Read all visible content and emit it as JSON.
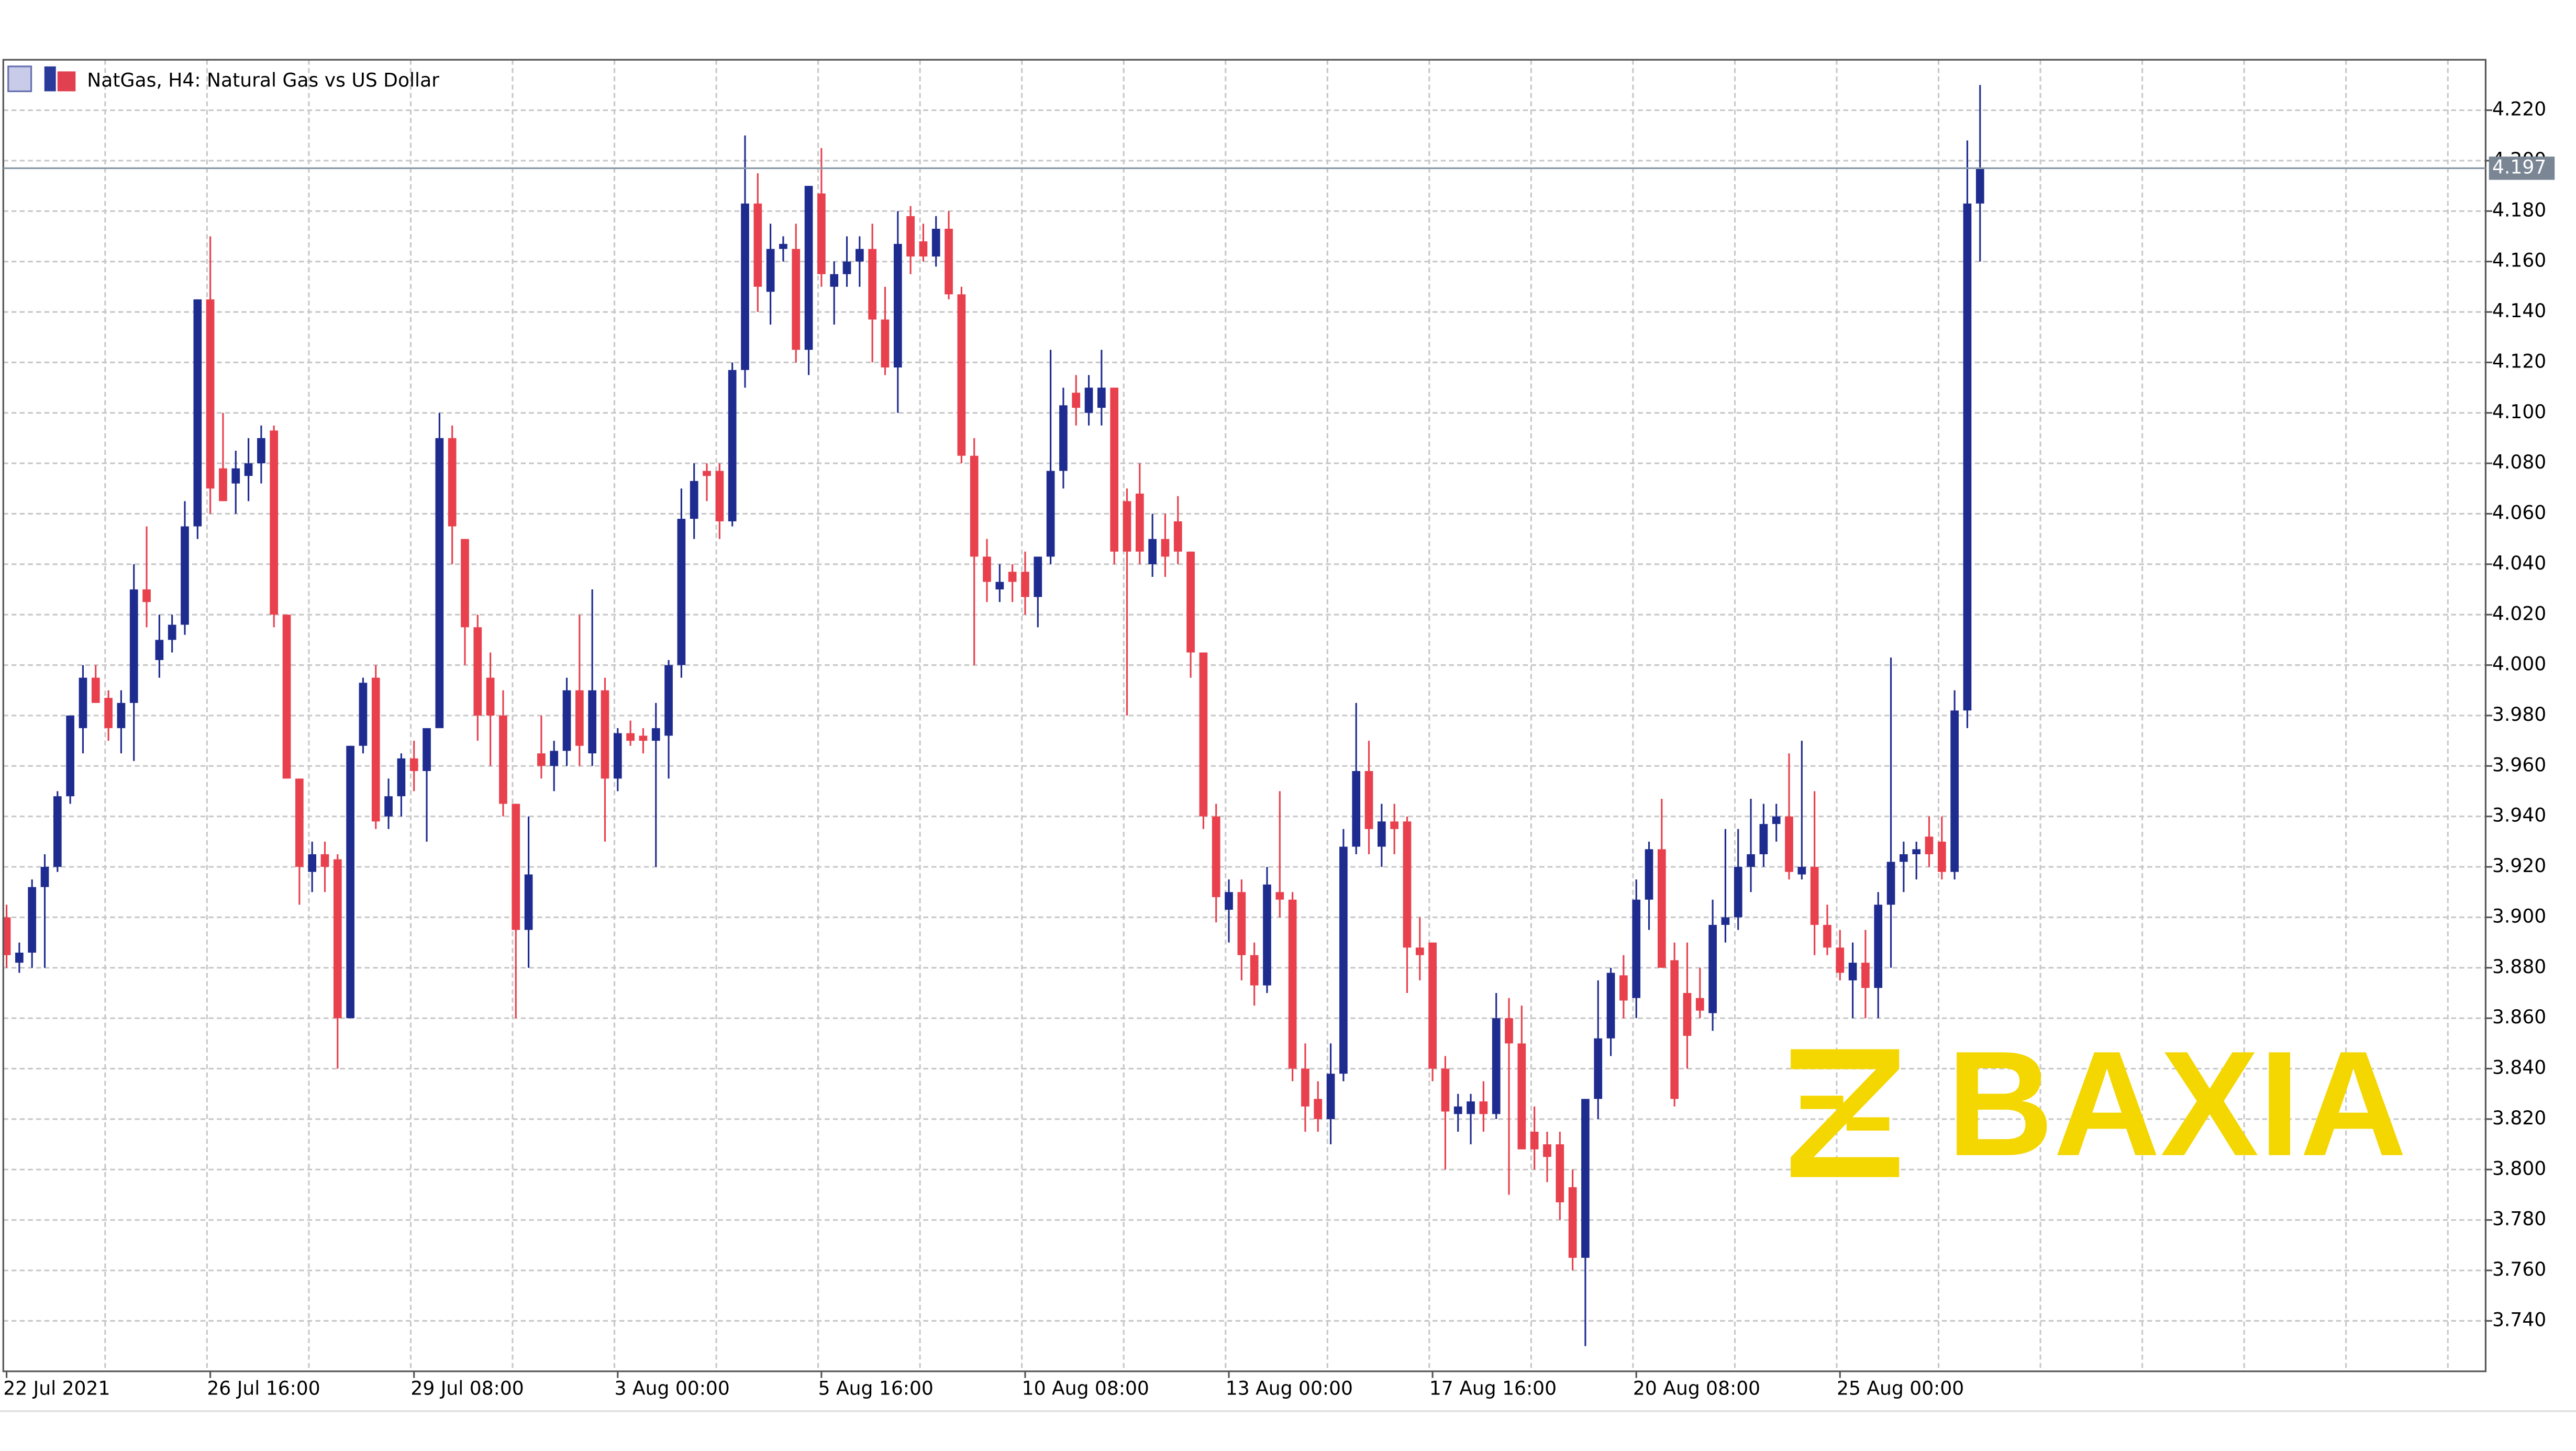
{
  "chart_data": {
    "type": "candlestick",
    "title": "NatGas, H4:  Natural Gas vs US Dollar",
    "watermark": "BAXIA",
    "bull_color": "#1f2c8f",
    "bear_color": "#e8404d",
    "grid": true,
    "ylim": [
      3.72,
      4.24
    ],
    "yticks": [
      {
        "value": 3.74,
        "label": "3.740"
      },
      {
        "value": 3.76,
        "label": "3.760"
      },
      {
        "value": 3.78,
        "label": "3.780"
      },
      {
        "value": 3.8,
        "label": "3.800"
      },
      {
        "value": 3.82,
        "label": "3.820"
      },
      {
        "value": 3.84,
        "label": "3.840"
      },
      {
        "value": 3.86,
        "label": "3.860"
      },
      {
        "value": 3.88,
        "label": "3.880"
      },
      {
        "value": 3.9,
        "label": "3.900"
      },
      {
        "value": 3.92,
        "label": "3.920"
      },
      {
        "value": 3.94,
        "label": "3.940"
      },
      {
        "value": 3.96,
        "label": "3.960"
      },
      {
        "value": 3.98,
        "label": "3.980"
      },
      {
        "value": 4.0,
        "label": "4.000"
      },
      {
        "value": 4.02,
        "label": "4.020"
      },
      {
        "value": 4.04,
        "label": "4.040"
      },
      {
        "value": 4.06,
        "label": "4.060"
      },
      {
        "value": 4.08,
        "label": "4.080"
      },
      {
        "value": 4.1,
        "label": "4.100"
      },
      {
        "value": 4.12,
        "label": "4.120"
      },
      {
        "value": 4.14,
        "label": "4.140"
      },
      {
        "value": 4.16,
        "label": "4.160"
      },
      {
        "value": 4.18,
        "label": "4.180"
      },
      {
        "value": 4.2,
        "label": "4.200"
      },
      {
        "value": 4.22,
        "label": "4.220"
      }
    ],
    "last_price": 4.197,
    "categories": [
      "22 Jul 2021",
      null,
      null,
      null,
      null,
      null,
      null,
      null,
      null,
      null,
      null,
      null,
      null,
      null,
      null,
      null,
      "26 Jul 16:00",
      null,
      null,
      null,
      null,
      null,
      null,
      null,
      null,
      null,
      null,
      null,
      null,
      null,
      null,
      null,
      "29 Jul 08:00",
      null,
      null,
      null,
      null,
      null,
      null,
      null,
      null,
      null,
      null,
      null,
      null,
      null,
      null,
      null,
      "3 Aug 00:00",
      null,
      null,
      null,
      null,
      null,
      null,
      null,
      null,
      null,
      null,
      null,
      null,
      null,
      null,
      null,
      "5 Aug 16:00",
      null,
      null,
      null,
      null,
      null,
      null,
      null,
      null,
      null,
      null,
      null,
      null,
      null,
      null,
      null,
      "10 Aug 08:00",
      null,
      null,
      null,
      null,
      null,
      null,
      null,
      null,
      null,
      null,
      null,
      null,
      null,
      null,
      null,
      "13 Aug 00:00",
      null,
      null,
      null,
      null,
      null,
      null,
      null,
      null,
      null,
      null,
      null,
      null,
      null,
      null,
      null,
      "17 Aug 16:00",
      null,
      null,
      null,
      null,
      null,
      null,
      null,
      null,
      null,
      null,
      null,
      null,
      null,
      null,
      null,
      "20 Aug 08:00",
      null,
      null,
      null,
      null,
      null,
      null,
      null,
      null,
      null,
      null,
      null,
      null,
      null,
      null,
      null,
      "25 Aug 00:00",
      null,
      null,
      null,
      null,
      null,
      null,
      null,
      null,
      null,
      null,
      null
    ],
    "ohlc": [
      [
        3.9,
        3.905,
        3.88,
        3.885
      ],
      [
        3.882,
        3.89,
        3.878,
        3.886
      ],
      [
        3.886,
        3.915,
        3.88,
        3.912
      ],
      [
        3.912,
        3.925,
        3.88,
        3.92
      ],
      [
        3.92,
        3.95,
        3.918,
        3.948
      ],
      [
        3.948,
        3.98,
        3.945,
        3.98
      ],
      [
        3.975,
        4.0,
        3.965,
        3.995
      ],
      [
        3.995,
        4.0,
        3.985,
        3.985
      ],
      [
        3.987,
        3.99,
        3.97,
        3.975
      ],
      [
        3.975,
        3.99,
        3.965,
        3.985
      ],
      [
        3.985,
        4.04,
        3.962,
        4.03
      ],
      [
        4.03,
        4.055,
        4.015,
        4.025
      ],
      [
        4.002,
        4.02,
        3.995,
        4.01
      ],
      [
        4.01,
        4.02,
        4.005,
        4.016
      ],
      [
        4.016,
        4.065,
        4.012,
        4.055
      ],
      [
        4.055,
        4.145,
        4.05,
        4.145
      ],
      [
        4.145,
        4.17,
        4.06,
        4.07
      ],
      [
        4.078,
        4.1,
        4.065,
        4.065
      ],
      [
        4.072,
        4.085,
        4.06,
        4.078
      ],
      [
        4.075,
        4.09,
        4.065,
        4.08
      ],
      [
        4.08,
        4.095,
        4.072,
        4.09
      ],
      [
        4.093,
        4.095,
        4.015,
        4.02
      ],
      [
        4.02,
        4.02,
        3.955,
        3.955
      ],
      [
        3.955,
        3.955,
        3.905,
        3.92
      ],
      [
        3.918,
        3.93,
        3.91,
        3.925
      ],
      [
        3.925,
        3.93,
        3.91,
        3.92
      ],
      [
        3.923,
        3.925,
        3.84,
        3.86
      ],
      [
        3.86,
        3.968,
        3.86,
        3.968
      ],
      [
        3.968,
        3.995,
        3.965,
        3.993
      ],
      [
        3.995,
        4.0,
        3.935,
        3.938
      ],
      [
        3.94,
        3.955,
        3.935,
        3.948
      ],
      [
        3.948,
        3.965,
        3.94,
        3.963
      ],
      [
        3.963,
        3.97,
        3.95,
        3.958
      ],
      [
        3.958,
        3.975,
        3.93,
        3.975
      ],
      [
        3.975,
        4.1,
        3.975,
        4.09
      ],
      [
        4.09,
        4.095,
        4.04,
        4.055
      ],
      [
        4.05,
        4.05,
        4.0,
        4.015
      ],
      [
        4.015,
        4.02,
        3.97,
        3.98
      ],
      [
        3.995,
        4.005,
        3.96,
        3.98
      ],
      [
        3.98,
        3.99,
        3.94,
        3.945
      ],
      [
        3.945,
        3.945,
        3.86,
        3.895
      ],
      [
        3.895,
        3.94,
        3.88,
        3.917
      ],
      [
        3.965,
        3.98,
        3.955,
        3.96
      ],
      [
        3.96,
        3.97,
        3.95,
        3.966
      ],
      [
        3.966,
        3.995,
        3.96,
        3.99
      ],
      [
        3.99,
        4.02,
        3.96,
        3.968
      ],
      [
        3.965,
        4.03,
        3.96,
        3.99
      ],
      [
        3.99,
        3.995,
        3.93,
        3.955
      ],
      [
        3.955,
        3.975,
        3.95,
        3.973
      ],
      [
        3.973,
        3.978,
        3.968,
        3.97
      ],
      [
        3.972,
        3.975,
        3.965,
        3.97
      ],
      [
        3.97,
        3.985,
        3.92,
        3.975
      ],
      [
        3.972,
        4.002,
        3.955,
        4.0
      ],
      [
        4.0,
        4.07,
        3.995,
        4.058
      ],
      [
        4.058,
        4.08,
        4.05,
        4.073
      ],
      [
        4.077,
        4.08,
        4.065,
        4.075
      ],
      [
        4.077,
        4.08,
        4.05,
        4.057
      ],
      [
        4.057,
        4.12,
        4.055,
        4.117
      ],
      [
        4.117,
        4.21,
        4.11,
        4.183
      ],
      [
        4.183,
        4.195,
        4.14,
        4.15
      ],
      [
        4.148,
        4.175,
        4.135,
        4.165
      ],
      [
        4.165,
        4.17,
        4.16,
        4.167
      ],
      [
        4.165,
        4.175,
        4.12,
        4.125
      ],
      [
        4.125,
        4.19,
        4.115,
        4.19
      ],
      [
        4.187,
        4.205,
        4.15,
        4.155
      ],
      [
        4.15,
        4.16,
        4.135,
        4.155
      ],
      [
        4.155,
        4.17,
        4.15,
        4.16
      ],
      [
        4.16,
        4.17,
        4.15,
        4.165
      ],
      [
        4.165,
        4.175,
        4.12,
        4.137
      ],
      [
        4.137,
        4.15,
        4.115,
        4.118
      ],
      [
        4.118,
        4.18,
        4.1,
        4.167
      ],
      [
        4.178,
        4.182,
        4.155,
        4.162
      ],
      [
        4.168,
        4.175,
        4.16,
        4.162
      ],
      [
        4.162,
        4.178,
        4.158,
        4.173
      ],
      [
        4.173,
        4.18,
        4.145,
        4.147
      ],
      [
        4.147,
        4.15,
        4.08,
        4.083
      ],
      [
        4.083,
        4.09,
        4.0,
        4.043
      ],
      [
        4.043,
        4.05,
        4.025,
        4.033
      ],
      [
        4.03,
        4.04,
        4.025,
        4.033
      ],
      [
        4.037,
        4.04,
        4.025,
        4.033
      ],
      [
        4.037,
        4.045,
        4.02,
        4.027
      ],
      [
        4.027,
        4.04,
        4.015,
        4.043
      ],
      [
        4.043,
        4.125,
        4.04,
        4.077
      ],
      [
        4.077,
        4.11,
        4.07,
        4.103
      ],
      [
        4.108,
        4.115,
        4.095,
        4.102
      ],
      [
        4.1,
        4.115,
        4.095,
        4.11
      ],
      [
        4.102,
        4.125,
        4.095,
        4.11
      ],
      [
        4.11,
        4.11,
        4.04,
        4.045
      ],
      [
        4.065,
        4.07,
        3.98,
        4.045
      ],
      [
        4.068,
        4.08,
        4.04,
        4.045
      ],
      [
        4.04,
        4.06,
        4.035,
        4.05
      ],
      [
        4.05,
        4.06,
        4.035,
        4.043
      ],
      [
        4.057,
        4.067,
        4.04,
        4.045
      ],
      [
        4.045,
        4.045,
        3.995,
        4.005
      ],
      [
        4.005,
        4.005,
        3.935,
        3.94
      ],
      [
        3.94,
        3.945,
        3.898,
        3.908
      ],
      [
        3.903,
        3.915,
        3.89,
        3.91
      ],
      [
        3.91,
        3.915,
        3.875,
        3.885
      ],
      [
        3.885,
        3.89,
        3.865,
        3.873
      ],
      [
        3.873,
        3.92,
        3.87,
        3.913
      ],
      [
        3.91,
        3.95,
        3.9,
        3.907
      ],
      [
        3.907,
        3.91,
        3.835,
        3.84
      ],
      [
        3.84,
        3.85,
        3.815,
        3.825
      ],
      [
        3.828,
        3.835,
        3.815,
        3.82
      ],
      [
        3.82,
        3.85,
        3.81,
        3.838
      ],
      [
        3.838,
        3.935,
        3.835,
        3.928
      ],
      [
        3.928,
        3.985,
        3.925,
        3.958
      ],
      [
        3.958,
        3.97,
        3.925,
        3.935
      ],
      [
        3.928,
        3.945,
        3.92,
        3.938
      ],
      [
        3.938,
        3.945,
        3.925,
        3.935
      ],
      [
        3.938,
        3.94,
        3.87,
        3.888
      ],
      [
        3.888,
        3.9,
        3.875,
        3.885
      ],
      [
        3.89,
        3.89,
        3.835,
        3.84
      ],
      [
        3.84,
        3.845,
        3.8,
        3.823
      ],
      [
        3.822,
        3.83,
        3.815,
        3.825
      ],
      [
        3.822,
        3.83,
        3.81,
        3.827
      ],
      [
        3.827,
        3.835,
        3.815,
        3.822
      ],
      [
        3.822,
        3.87,
        3.82,
        3.86
      ],
      [
        3.86,
        3.868,
        3.79,
        3.85
      ],
      [
        3.85,
        3.865,
        3.81,
        3.808
      ],
      [
        3.815,
        3.825,
        3.8,
        3.808
      ],
      [
        3.81,
        3.815,
        3.795,
        3.805
      ],
      [
        3.81,
        3.815,
        3.78,
        3.787
      ],
      [
        3.793,
        3.8,
        3.76,
        3.765
      ],
      [
        3.765,
        3.828,
        3.73,
        3.828
      ],
      [
        3.828,
        3.875,
        3.82,
        3.852
      ],
      [
        3.852,
        3.88,
        3.845,
        3.878
      ],
      [
        3.877,
        3.885,
        3.86,
        3.867
      ],
      [
        3.868,
        3.915,
        3.86,
        3.907
      ],
      [
        3.907,
        3.93,
        3.895,
        3.927
      ],
      [
        3.927,
        3.947,
        3.88,
        3.88
      ],
      [
        3.883,
        3.89,
        3.825,
        3.828
      ],
      [
        3.87,
        3.89,
        3.84,
        3.853
      ],
      [
        3.868,
        3.88,
        3.86,
        3.863
      ],
      [
        3.862,
        3.907,
        3.855,
        3.897
      ],
      [
        3.897,
        3.935,
        3.89,
        3.9
      ],
      [
        3.9,
        3.935,
        3.895,
        3.92
      ],
      [
        3.92,
        3.947,
        3.91,
        3.925
      ],
      [
        3.925,
        3.945,
        3.92,
        3.937
      ],
      [
        3.937,
        3.945,
        3.93,
        3.94
      ],
      [
        3.94,
        3.965,
        3.915,
        3.918
      ],
      [
        3.917,
        3.97,
        3.915,
        3.92
      ],
      [
        3.92,
        3.95,
        3.885,
        3.897
      ],
      [
        3.897,
        3.905,
        3.885,
        3.888
      ],
      [
        3.888,
        3.895,
        3.875,
        3.878
      ],
      [
        3.875,
        3.89,
        3.86,
        3.882
      ],
      [
        3.882,
        3.895,
        3.86,
        3.872
      ],
      [
        3.872,
        3.91,
        3.86,
        3.905
      ],
      [
        3.905,
        4.003,
        3.88,
        3.922
      ],
      [
        3.922,
        3.93,
        3.91,
        3.925
      ],
      [
        3.925,
        3.93,
        3.915,
        3.927
      ],
      [
        3.932,
        3.94,
        3.92,
        3.925
      ],
      [
        3.93,
        3.94,
        3.915,
        3.918
      ],
      [
        3.918,
        3.99,
        3.915,
        3.982
      ],
      [
        3.982,
        4.208,
        3.975,
        4.183
      ],
      [
        4.183,
        4.23,
        4.16,
        4.197
      ]
    ]
  }
}
